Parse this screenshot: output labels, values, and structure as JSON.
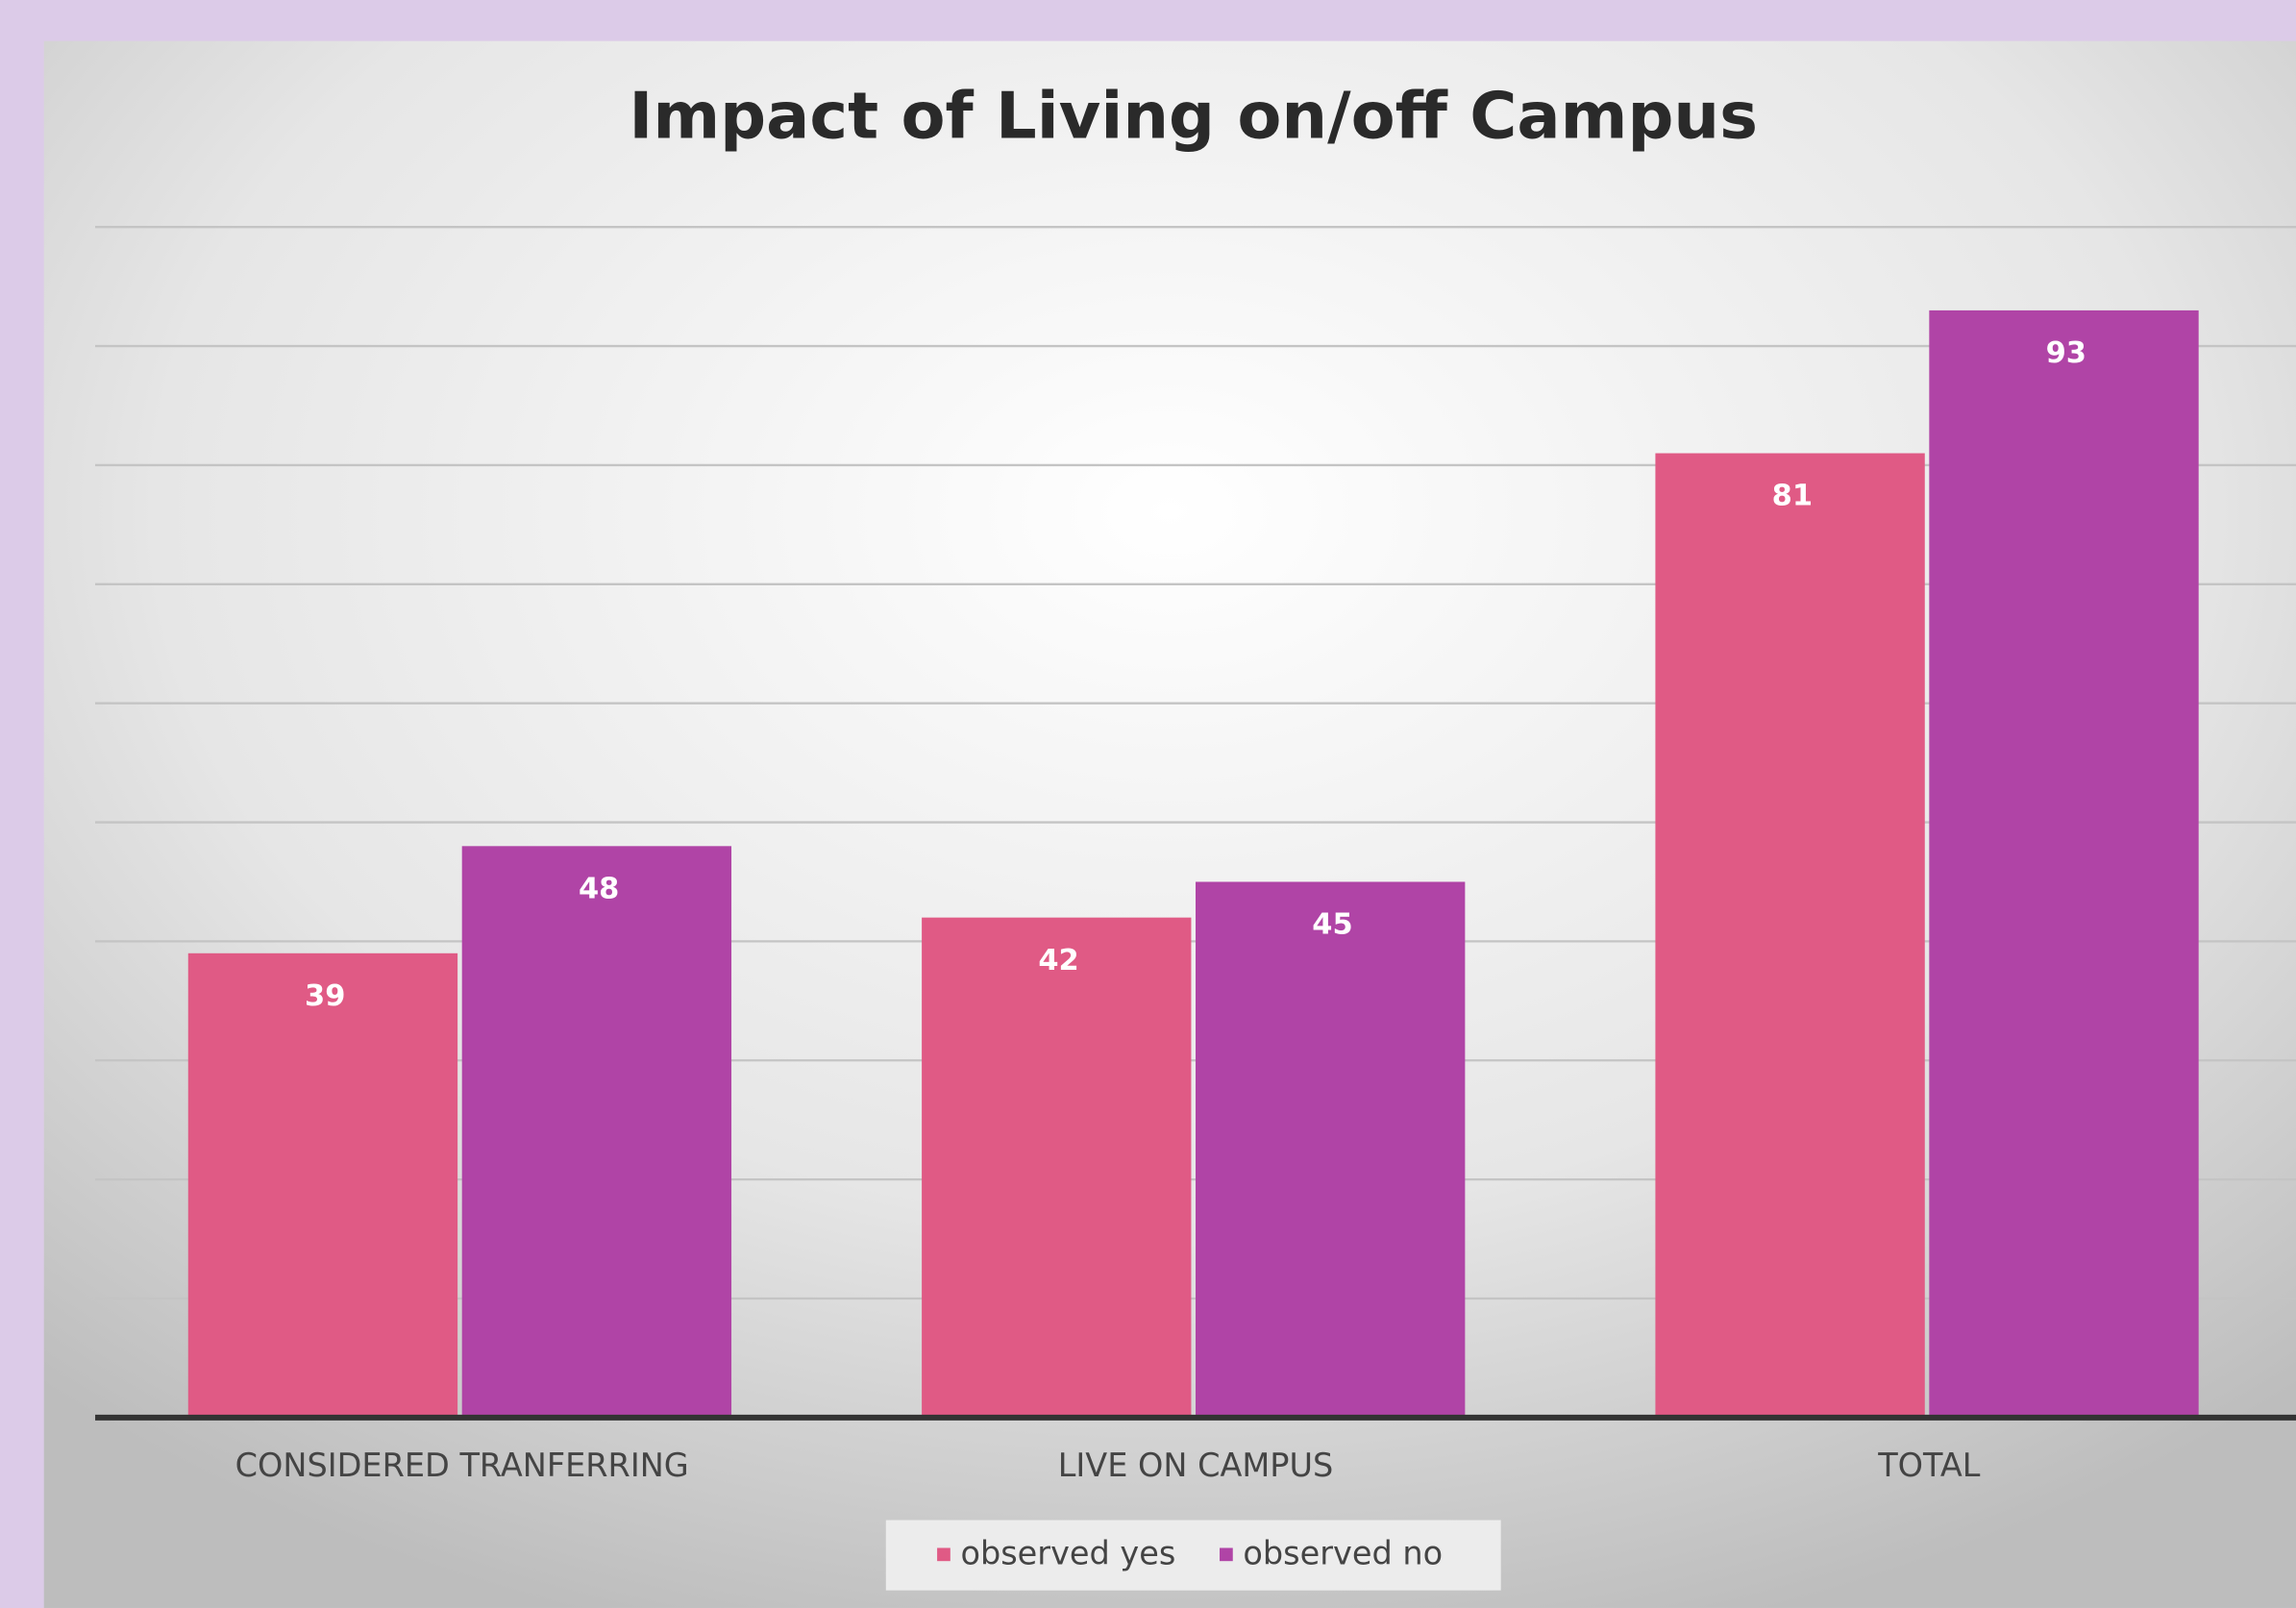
{
  "chart_data": {
    "type": "bar",
    "title": "Impact of Living on/off Campus",
    "categories": [
      "CONSIDERED TRANFERRING",
      "LIVE ON CAMPUS",
      "TOTAL"
    ],
    "series": [
      {
        "name": "observed yes",
        "color": "#e05a85",
        "values": [
          39,
          42,
          81
        ]
      },
      {
        "name": "observed no",
        "color": "#b044a6",
        "values": [
          48,
          45,
          93
        ]
      }
    ],
    "ylim": [
      0,
      100
    ],
    "yticks": [
      0,
      10,
      20,
      30,
      40,
      50,
      60,
      70,
      80,
      90,
      100
    ],
    "grid": true,
    "legend": "bottom"
  }
}
